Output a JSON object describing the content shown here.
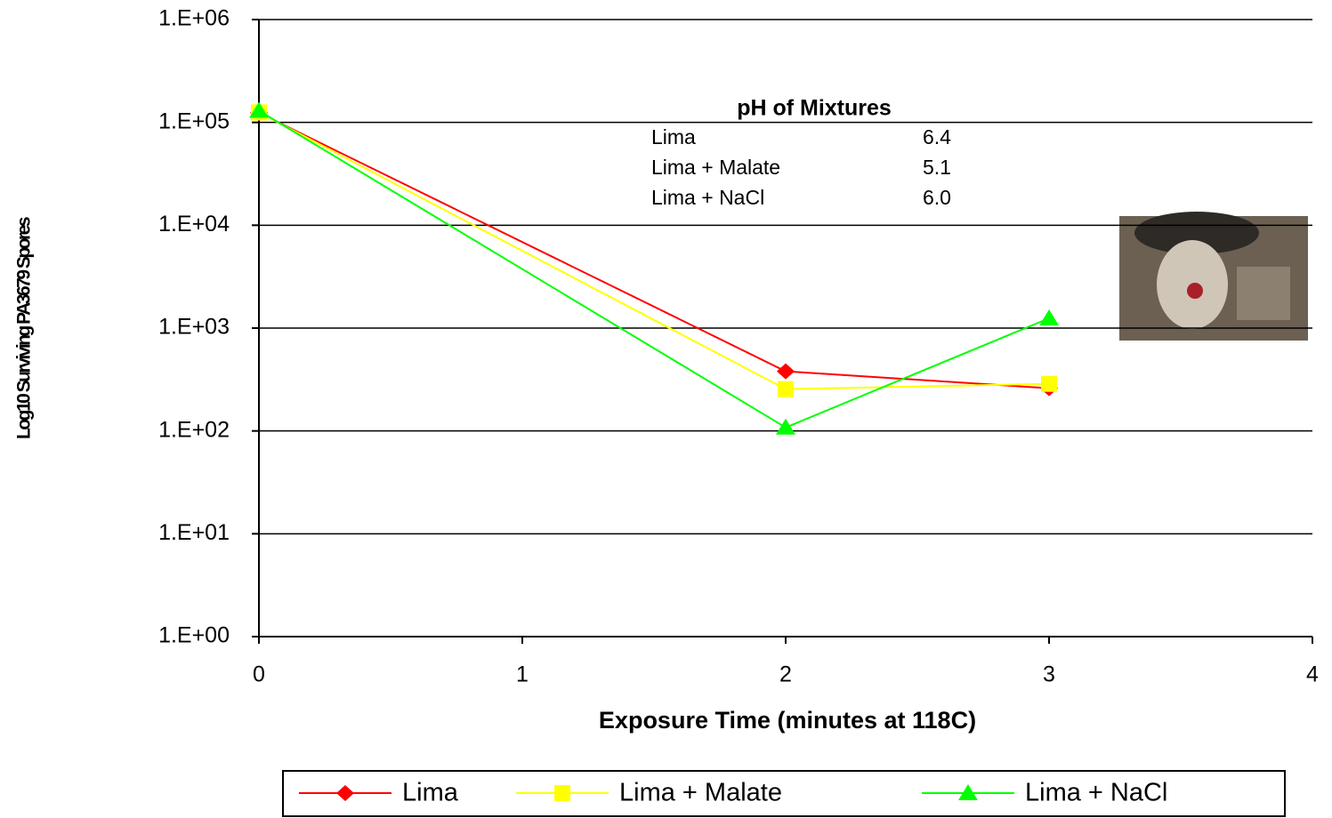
{
  "chart_data": {
    "type": "line",
    "x_label": "Exposure Time (minutes at 118C)",
    "y_label": "Log10 Surviving PA3679 Spores",
    "x": [
      0,
      2,
      3
    ],
    "xlim": [
      0,
      4
    ],
    "xticks": [
      0,
      1,
      2,
      3,
      4
    ],
    "ylim": [
      1,
      1000000
    ],
    "log_y": true,
    "yticks": [
      {
        "value": 1,
        "label": "1.E+00"
      },
      {
        "value": 10,
        "label": "1.E+01"
      },
      {
        "value": 100,
        "label": "1.E+02"
      },
      {
        "value": 1000,
        "label": "1.E+03"
      },
      {
        "value": 10000,
        "label": "1.E+04"
      },
      {
        "value": 100000,
        "label": "1.E+05"
      },
      {
        "value": 1000000,
        "label": "1.E+06"
      }
    ],
    "grid": true,
    "legend": "bottom",
    "series": [
      {
        "name": "Lima",
        "color": "#ff0000",
        "marker": "diamond",
        "values": [
          124000,
          380,
          260
        ]
      },
      {
        "name": "Lima + Malate",
        "color": "#ffff00",
        "marker": "square",
        "values": [
          125000,
          255,
          287
        ]
      },
      {
        "name": "Lima + NaCl",
        "color": "#00ff00",
        "marker": "triangle",
        "values": [
          130000,
          108,
          1245
        ]
      }
    ],
    "annotation": {
      "title": "pH of Mixtures",
      "rows": [
        [
          "Lima",
          "6.4"
        ],
        [
          "Lima + Malate",
          "5.1"
        ],
        [
          "Lima + NaCl",
          "6.0"
        ]
      ]
    }
  }
}
